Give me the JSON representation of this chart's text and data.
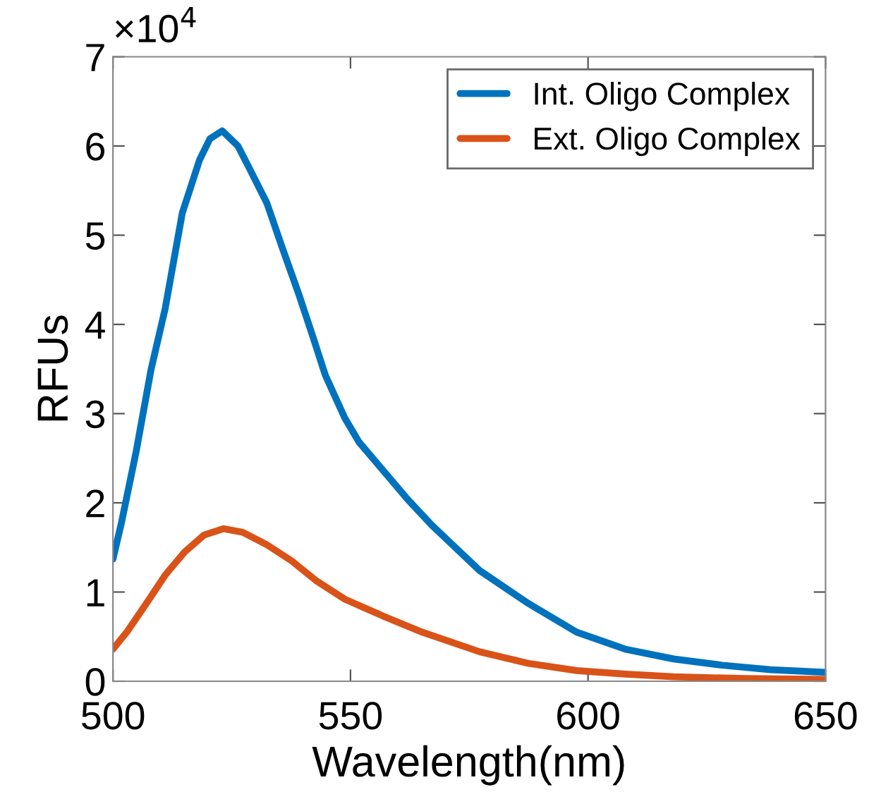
{
  "chart_data": {
    "type": "line",
    "xlabel": "Wavelength(nm)",
    "ylabel": "RFUs",
    "annotations": [
      "×10$^{4}$"
    ],
    "xlim": [
      500,
      650
    ],
    "xticks": [
      500,
      550,
      600,
      650
    ],
    "ylim": [
      0,
      7
    ],
    "yticks": [
      0,
      1,
      2,
      3,
      4,
      5,
      6,
      7
    ],
    "grid": false,
    "legend": "top right",
    "marker": "none",
    "line_style": "solid",
    "series": [
      {
        "name": "Int. Oligo Complex",
        "color": "#0072bd",
        "x": [
          500,
          501.8,
          504.9,
          508,
          511,
          514.6,
          518.2,
          520.4,
          523,
          526.3,
          528.9,
          532.4,
          535.5,
          539.1,
          542.1,
          544.7,
          548.8,
          551.8,
          556.9,
          562,
          567.1,
          577.2,
          587.5,
          597.6,
          607.8,
          618,
          628.2,
          638.4,
          650
        ],
        "values": [
          1.37,
          1.78,
          2.58,
          3.49,
          4.18,
          5.25,
          5.84,
          6.08,
          6.17,
          6.0,
          5.73,
          5.36,
          4.88,
          4.34,
          3.86,
          3.43,
          2.95,
          2.68,
          2.36,
          2.04,
          1.75,
          1.24,
          0.87,
          0.55,
          0.36,
          0.25,
          0.18,
          0.13,
          0.1
        ]
      },
      {
        "name": "Ext. Oligo Complex",
        "color": "#d95319",
        "x": [
          500,
          502.9,
          507,
          511,
          515.1,
          519.2,
          523.3,
          527.3,
          532.4,
          537.6,
          542.7,
          548.8,
          556.9,
          565.1,
          577.2,
          587.5,
          597.6,
          607.8,
          618,
          633,
          650
        ],
        "values": [
          0.36,
          0.55,
          0.87,
          1.19,
          1.45,
          1.64,
          1.71,
          1.67,
          1.53,
          1.35,
          1.13,
          0.92,
          0.73,
          0.55,
          0.33,
          0.2,
          0.12,
          0.08,
          0.05,
          0.03,
          0.02
        ]
      }
    ]
  }
}
